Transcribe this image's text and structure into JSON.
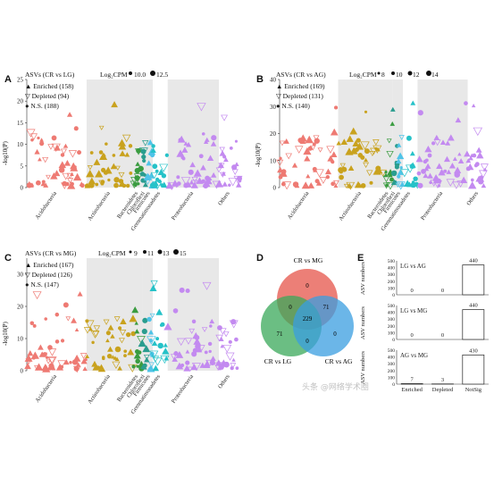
{
  "colors": {
    "acido": "#ee7a73",
    "actino": "#c9a21e",
    "bactero": "#3a9c40",
    "chloro": "#2a9d8f",
    "firmi": "#4fc3e8",
    "gemma": "#26c2c8",
    "proteo": "#c38af0",
    "others": "#c38af0",
    "shade": "#e8e8e8",
    "venn_red": "#e9685f",
    "venn_green": "#3aa85a",
    "venn_blue": "#3a9de0"
  },
  "phyla": [
    "Acidobacteria",
    "Actinobacteria",
    "Bacteroidetes",
    "Chloroflexi",
    "Firmicutes",
    "Gemmatimonadetes",
    "Proteobacteria",
    "Others"
  ],
  "legend_labels": {
    "enriched": "Enriched",
    "depleted": "Depleted",
    "ns": "N.S."
  },
  "panels": [
    {
      "letter": "A",
      "title": "ASVs (CR vs LG)",
      "cpm_label": "Log₂CPM",
      "cpm_values": [
        "10.0",
        "12.5"
      ],
      "ylabel": "-log10(P)",
      "yticks": [
        "0",
        "5",
        "10",
        "15",
        "20",
        "25"
      ],
      "enriched": "▲ Enriched (158)",
      "depleted": "▽ Depleted (94)",
      "ns": "● N.S. (188)"
    },
    {
      "letter": "B",
      "title": "ASVs (CR vs AG)",
      "cpm_label": "Log₂CPM",
      "cpm_values": [
        "8",
        "10",
        "12",
        "14"
      ],
      "ylabel": "-log10(P)",
      "yticks": [
        "0",
        "10",
        "20",
        "30",
        "40"
      ],
      "enriched": "▲ Enriched (169)",
      "depleted": "▽ Depleted (131)",
      "ns": "● N.S. (140)"
    },
    {
      "letter": "C",
      "title": "ASVs (CR vs MG)",
      "cpm_label": "Log₂CPM",
      "cpm_values": [
        "9",
        "11",
        "13",
        "15"
      ],
      "ylabel": "-log10(P)",
      "yticks": [
        "0",
        "10",
        "20",
        "30"
      ],
      "enriched": "▲ Enriched (167)",
      "depleted": "▽ Depleted (126)",
      "ns": "● N.S. (147)"
    }
  ],
  "venn": {
    "letter": "D",
    "labels": {
      "top": "CR vs MG",
      "left": "CR vs LG",
      "right": "CR vs AG"
    },
    "values": {
      "top_only": "0",
      "left_only": "71",
      "right_only": "0",
      "top_left": "0",
      "top_right": "71",
      "left_right": "0",
      "center": "229"
    }
  },
  "bars": {
    "letter": "E",
    "ylabel": "ASV numbers",
    "yticks": [
      "0",
      "100",
      "200",
      "300",
      "400",
      "500"
    ],
    "categories": [
      "Enriched",
      "Depleted",
      "NotSig"
    ],
    "rows": [
      {
        "title": "LG vs AG",
        "values": [
          0,
          0,
          440
        ],
        "labels": [
          "0",
          "0",
          "440"
        ]
      },
      {
        "title": "LG vs MG",
        "values": [
          0,
          0,
          440
        ],
        "labels": [
          "0",
          "0",
          "440"
        ]
      },
      {
        "title": "AG vs MG",
        "values": [
          7,
          3,
          430
        ],
        "labels": [
          "7",
          "3",
          "430"
        ]
      }
    ]
  },
  "watermark": "头条 @网络学术圈",
  "chart_data": [
    {
      "type": "scatter",
      "title": "ASVs (CR vs LG)",
      "ylabel": "-log10(P)",
      "ylim": [
        0,
        25
      ],
      "categories": [
        "Acidobacteria",
        "Actinobacteria",
        "Bacteroidetes",
        "Chloroflexi",
        "Firmicutes",
        "Gemmatimonadetes",
        "Proteobacteria",
        "Others"
      ],
      "series": [
        {
          "name": "Enriched",
          "count": 158
        },
        {
          "name": "Depleted",
          "count": 94
        },
        {
          "name": "N.S.",
          "count": 188
        }
      ]
    },
    {
      "type": "scatter",
      "title": "ASVs (CR vs AG)",
      "ylabel": "-log10(P)",
      "ylim": [
        0,
        40
      ],
      "categories": [
        "Acidobacteria",
        "Actinobacteria",
        "Bacteroidetes",
        "Chloroflexi",
        "Firmicutes",
        "Gemmatimonadetes",
        "Proteobacteria",
        "Others"
      ],
      "series": [
        {
          "name": "Enriched",
          "count": 169
        },
        {
          "name": "Depleted",
          "count": 131
        },
        {
          "name": "N.S.",
          "count": 140
        }
      ]
    },
    {
      "type": "scatter",
      "title": "ASVs (CR vs MG)",
      "ylabel": "-log10(P)",
      "ylim": [
        0,
        35
      ],
      "categories": [
        "Acidobacteria",
        "Actinobacteria",
        "Bacteroidetes",
        "Chloroflexi",
        "Firmicutes",
        "Gemmatimonadetes",
        "Proteobacteria",
        "Others"
      ],
      "series": [
        {
          "name": "Enriched",
          "count": 167
        },
        {
          "name": "Depleted",
          "count": 126
        },
        {
          "name": "N.S.",
          "count": 147
        }
      ]
    },
    {
      "type": "bar",
      "title": "LG vs AG",
      "categories": [
        "Enriched",
        "Depleted",
        "NotSig"
      ],
      "values": [
        0,
        0,
        440
      ],
      "ylabel": "ASV numbers",
      "ylim": [
        0,
        500
      ]
    },
    {
      "type": "bar",
      "title": "LG vs MG",
      "categories": [
        "Enriched",
        "Depleted",
        "NotSig"
      ],
      "values": [
        0,
        0,
        440
      ],
      "ylabel": "ASV numbers",
      "ylim": [
        0,
        500
      ]
    },
    {
      "type": "bar",
      "title": "AG vs MG",
      "categories": [
        "Enriched",
        "Depleted",
        "NotSig"
      ],
      "values": [
        7,
        3,
        430
      ],
      "ylabel": "ASV numbers",
      "ylim": [
        0,
        500
      ]
    }
  ]
}
